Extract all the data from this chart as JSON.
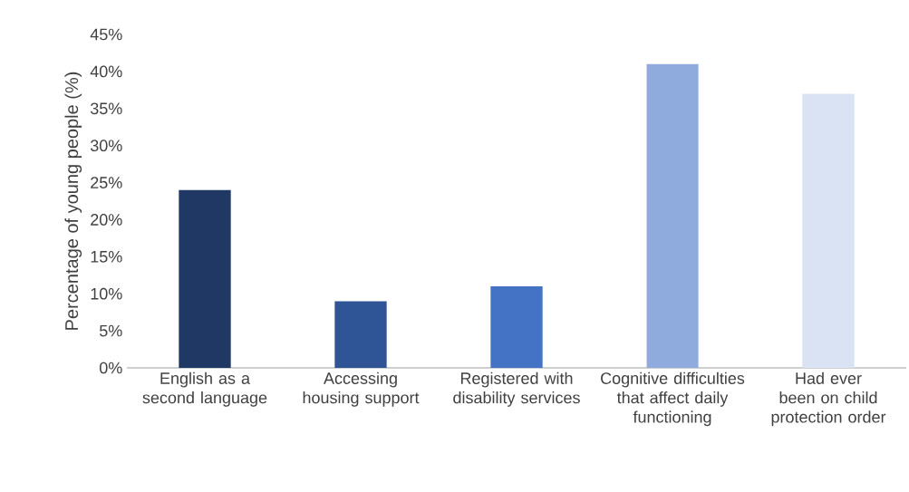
{
  "chart_data": {
    "type": "bar",
    "ylabel": "Percentage of young people (%)",
    "categories": [
      "English as a second language",
      "Accessing housing support",
      "Registered with disability services",
      "Cognitive difficulties that affect daily functioning",
      "Had ever been on child protection order"
    ],
    "values": [
      24,
      9,
      11,
      41,
      37
    ],
    "colors": [
      "#203864",
      "#2f5597",
      "#4472c4",
      "#8faadc",
      "#dae3f3"
    ],
    "ylim": [
      0,
      45
    ],
    "yticks": [
      {
        "value": 0,
        "label": "0%"
      },
      {
        "value": 5,
        "label": "5%"
      },
      {
        "value": 10,
        "label": "10%"
      },
      {
        "value": 15,
        "label": "15%"
      },
      {
        "value": 20,
        "label": "20%"
      },
      {
        "value": 25,
        "label": "25%"
      },
      {
        "value": 30,
        "label": "30%"
      },
      {
        "value": 35,
        "label": "35%"
      },
      {
        "value": 40,
        "label": "40%"
      },
      {
        "value": 45,
        "label": "45%"
      }
    ]
  }
}
